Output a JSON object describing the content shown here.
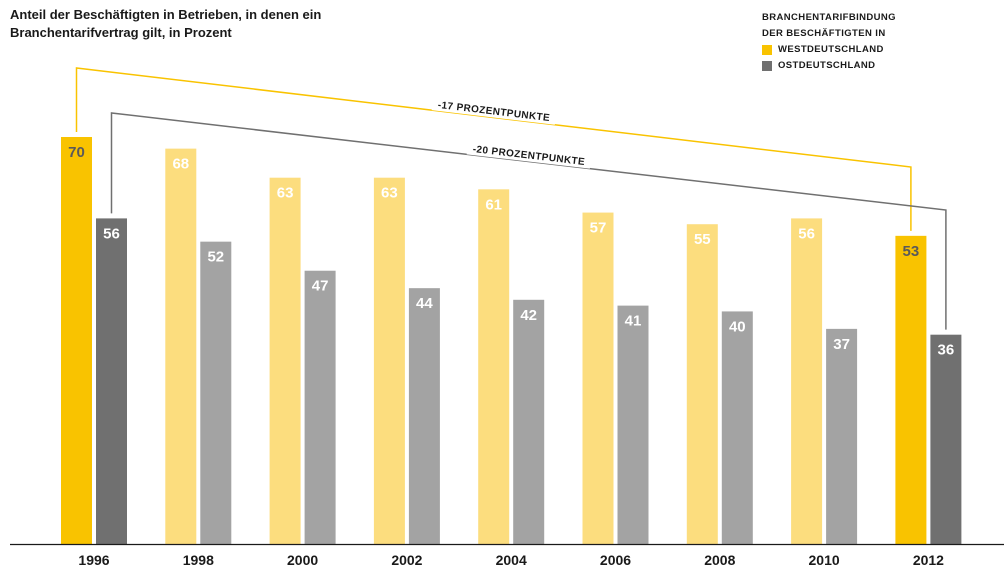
{
  "subtitle": "Anteil der Beschäftigten in Betrieben, in denen ein Branchentarifvertrag gilt, in Prozent",
  "legend": {
    "title_line1": "BRANCHENTARIFBINDUNG",
    "title_line2": "DER BESCHÄFTIGTEN IN",
    "items": [
      {
        "label": "WESTDEUTSCHLAND",
        "color": "#F9C300"
      },
      {
        "label": "OSTDEUTSCHLAND",
        "color": "#707070"
      }
    ]
  },
  "chart_data": {
    "type": "bar",
    "categories": [
      "1996",
      "1998",
      "2000",
      "2002",
      "2004",
      "2006",
      "2008",
      "2010",
      "2012"
    ],
    "series": [
      {
        "name": "WESTDEUTSCHLAND",
        "values": [
          70,
          68,
          63,
          63,
          61,
          57,
          55,
          56,
          53
        ],
        "color_highlight": "#F9C300",
        "color": "#FCDD7E"
      },
      {
        "name": "OSTDEUTSCHLAND",
        "values": [
          56,
          52,
          47,
          44,
          42,
          41,
          40,
          37,
          36
        ],
        "color_highlight": "#707070",
        "color": "#A3A3A3"
      }
    ],
    "highlighted_categories": [
      "1996",
      "2012"
    ],
    "ylim": [
      0,
      70
    ],
    "annotations": [
      {
        "text": "-17 PROZENTPUNKTE",
        "series": "WESTDEUTSCHLAND",
        "from": "1996",
        "to": "2012",
        "color": "#F9C300"
      },
      {
        "text": "-20 PROZENTPUNKTE",
        "series": "OSTDEUTSCHLAND",
        "from": "1996",
        "to": "2012",
        "color": "#707070"
      }
    ]
  }
}
